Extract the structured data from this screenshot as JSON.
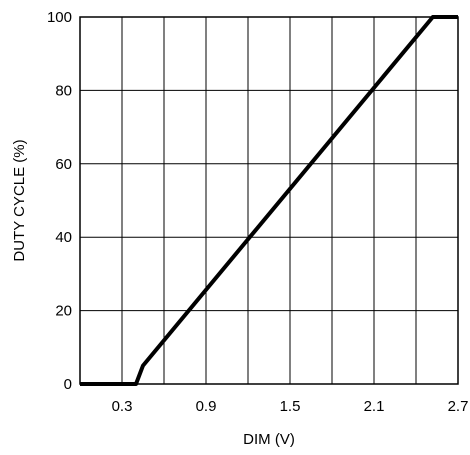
{
  "chart_data": {
    "type": "line",
    "title": "",
    "xlabel": "DIM (V)",
    "ylabel": "DUTY CYCLE (%)",
    "xlim": [
      0.0,
      2.7
    ],
    "ylim": [
      0,
      100
    ],
    "xticks": [
      0.3,
      0.9,
      1.5,
      2.1,
      2.7
    ],
    "xtick_labels": [
      "0.3",
      "0.9",
      "1.5",
      "2.1",
      "2.7"
    ],
    "yticks": [
      0,
      20,
      40,
      60,
      80,
      100
    ],
    "ytick_labels": [
      "0",
      "20",
      "40",
      "60",
      "80",
      "100"
    ],
    "x_gridlines": [
      0.3,
      0.6,
      0.9,
      1.2,
      1.5,
      1.8,
      2.1,
      2.4,
      2.7
    ],
    "y_gridlines": [
      0,
      20,
      40,
      60,
      80,
      100
    ],
    "grid": true,
    "legend": "none",
    "series": [
      {
        "x": [
          0.0,
          0.4,
          0.45,
          2.52,
          2.7
        ],
        "y": [
          0,
          0,
          5,
          100,
          100
        ],
        "color": "#000000"
      }
    ]
  }
}
